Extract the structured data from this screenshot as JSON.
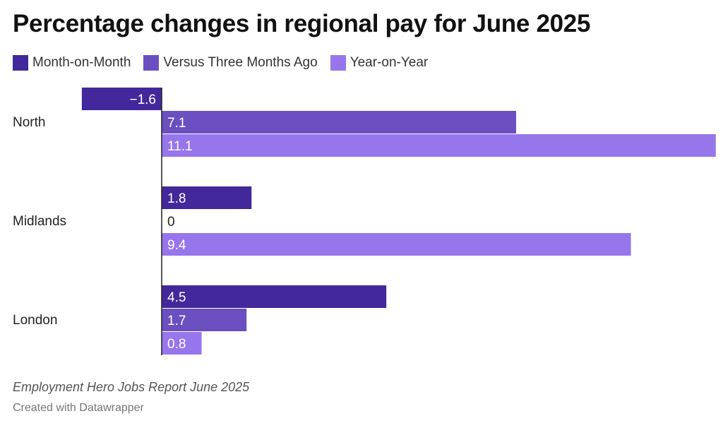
{
  "title": "Percentage changes in regional pay for June 2025",
  "source": "Employment Hero Jobs Report June 2025",
  "credit": "Created with Datawrapper",
  "chart_data": {
    "type": "bar",
    "orientation": "horizontal",
    "categories": [
      "North",
      "Midlands",
      "London"
    ],
    "series": [
      {
        "name": "Month-on-Month",
        "color": "#42289a",
        "values": [
          -1.6,
          1.8,
          4.5
        ],
        "labels": [
          "−1.6",
          "1.8",
          "4.5"
        ]
      },
      {
        "name": "Versus Three Months Ago",
        "color": "#6b4fc1",
        "values": [
          7.1,
          0,
          1.7
        ],
        "labels": [
          "7.1",
          "0",
          "1.7"
        ]
      },
      {
        "name": "Year-on-Year",
        "color": "#9776ec",
        "values": [
          11.1,
          9.4,
          0.8
        ],
        "labels": [
          "11.1",
          "9.4",
          "0.8"
        ]
      }
    ],
    "legend_position": "top-left",
    "grid": false
  }
}
